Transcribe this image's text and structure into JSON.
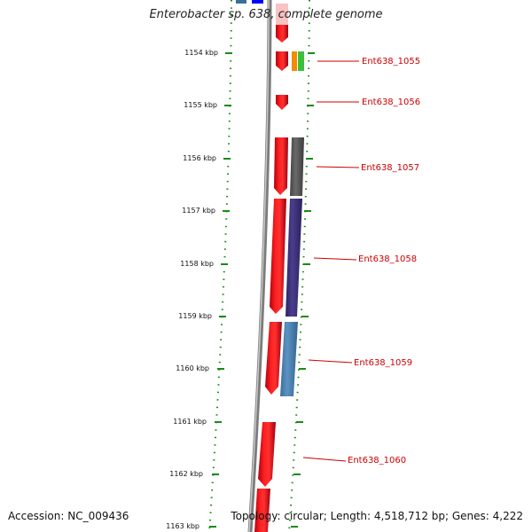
{
  "title": "Enterobacter sp. 638, complete genome",
  "footer": {
    "accession": "Accession: NC_009436",
    "summary": "Topology: circular; Length: 4,518,712 bp; Genes: 4,222"
  },
  "colors": {
    "backbone": "#8a8a8a",
    "tick": "#1a8a1a",
    "label": "#cc0000",
    "forward_gene": "#e8001a",
    "highlight_pink": "#f7c3c3"
  },
  "ticks": [
    {
      "label": "1154 kbp"
    },
    {
      "label": "1155 kbp"
    },
    {
      "label": "1156 kbp"
    },
    {
      "label": "1157 kbp"
    },
    {
      "label": "1158 kbp"
    },
    {
      "label": "1159 kbp"
    },
    {
      "label": "1160 kbp"
    },
    {
      "label": "1161 kbp"
    },
    {
      "label": "1162 kbp"
    },
    {
      "label": "1163 kbp"
    }
  ],
  "genes": [
    {
      "name": "Ent638_1055"
    },
    {
      "name": "Ent638_1056"
    },
    {
      "name": "Ent638_1057"
    },
    {
      "name": "Ent638_1058"
    },
    {
      "name": "Ent638_1059"
    },
    {
      "name": "Ent638_1060"
    }
  ]
}
